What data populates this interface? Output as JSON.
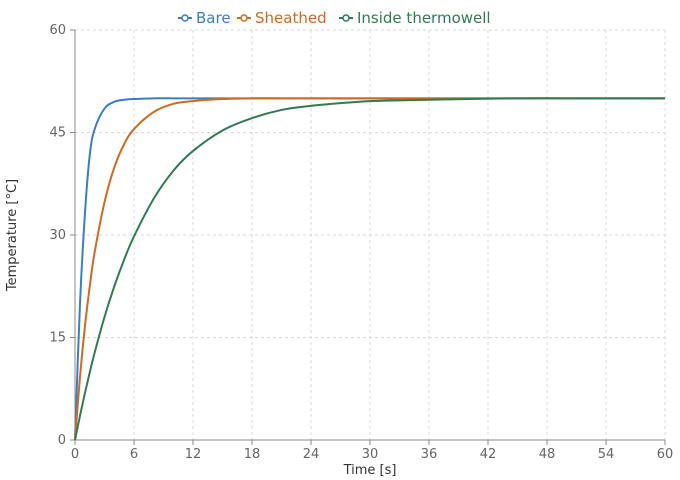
{
  "chart_data": {
    "type": "line",
    "title": "",
    "xlabel": "Time [s]",
    "ylabel": "Temperature [°C]",
    "xlim": [
      0,
      60
    ],
    "ylim": [
      0,
      60
    ],
    "x_ticks": [
      0,
      6,
      12,
      18,
      24,
      30,
      36,
      42,
      48,
      54,
      60
    ],
    "y_ticks": [
      0,
      15,
      30,
      45,
      60
    ],
    "grid": true,
    "legend_position": "top",
    "x": [
      0,
      0.5,
      1,
      1.5,
      2,
      3,
      4,
      5,
      6,
      8,
      10,
      12,
      15,
      18,
      21,
      24,
      27,
      30,
      33,
      36,
      40,
      45,
      50,
      55,
      60
    ],
    "series": [
      {
        "name": "Bare",
        "color": "#3a7ec4",
        "values": [
          0,
          19.7,
          32.9,
          41.7,
          45.5,
          48.5,
          49.5,
          49.8,
          49.9,
          50.0,
          50.0,
          50.0,
          50.0,
          50.0,
          50.0,
          50.0,
          50.0,
          50.0,
          50.0,
          50.0,
          50.0,
          50.0,
          50.0,
          50.0,
          50.0
        ]
      },
      {
        "name": "Sheathed",
        "color": "#d2691e",
        "values": [
          0,
          9.1,
          16.5,
          22.5,
          27.5,
          34.8,
          39.9,
          43.3,
          45.5,
          48.0,
          49.2,
          49.6,
          49.9,
          50.0,
          50.0,
          50.0,
          50.0,
          50.0,
          50.0,
          50.0,
          50.0,
          50.0,
          50.0,
          50.0,
          50.0
        ]
      },
      {
        "name": "Inside thermowell",
        "color": "#2e7d52",
        "values": [
          0,
          3.5,
          6.8,
          9.9,
          12.8,
          18.0,
          22.5,
          26.4,
          29.8,
          35.3,
          39.4,
          42.3,
          45.3,
          47.1,
          48.3,
          48.9,
          49.3,
          49.6,
          49.7,
          49.8,
          49.9,
          50.0,
          50.0,
          50.0,
          50.0
        ]
      }
    ]
  }
}
